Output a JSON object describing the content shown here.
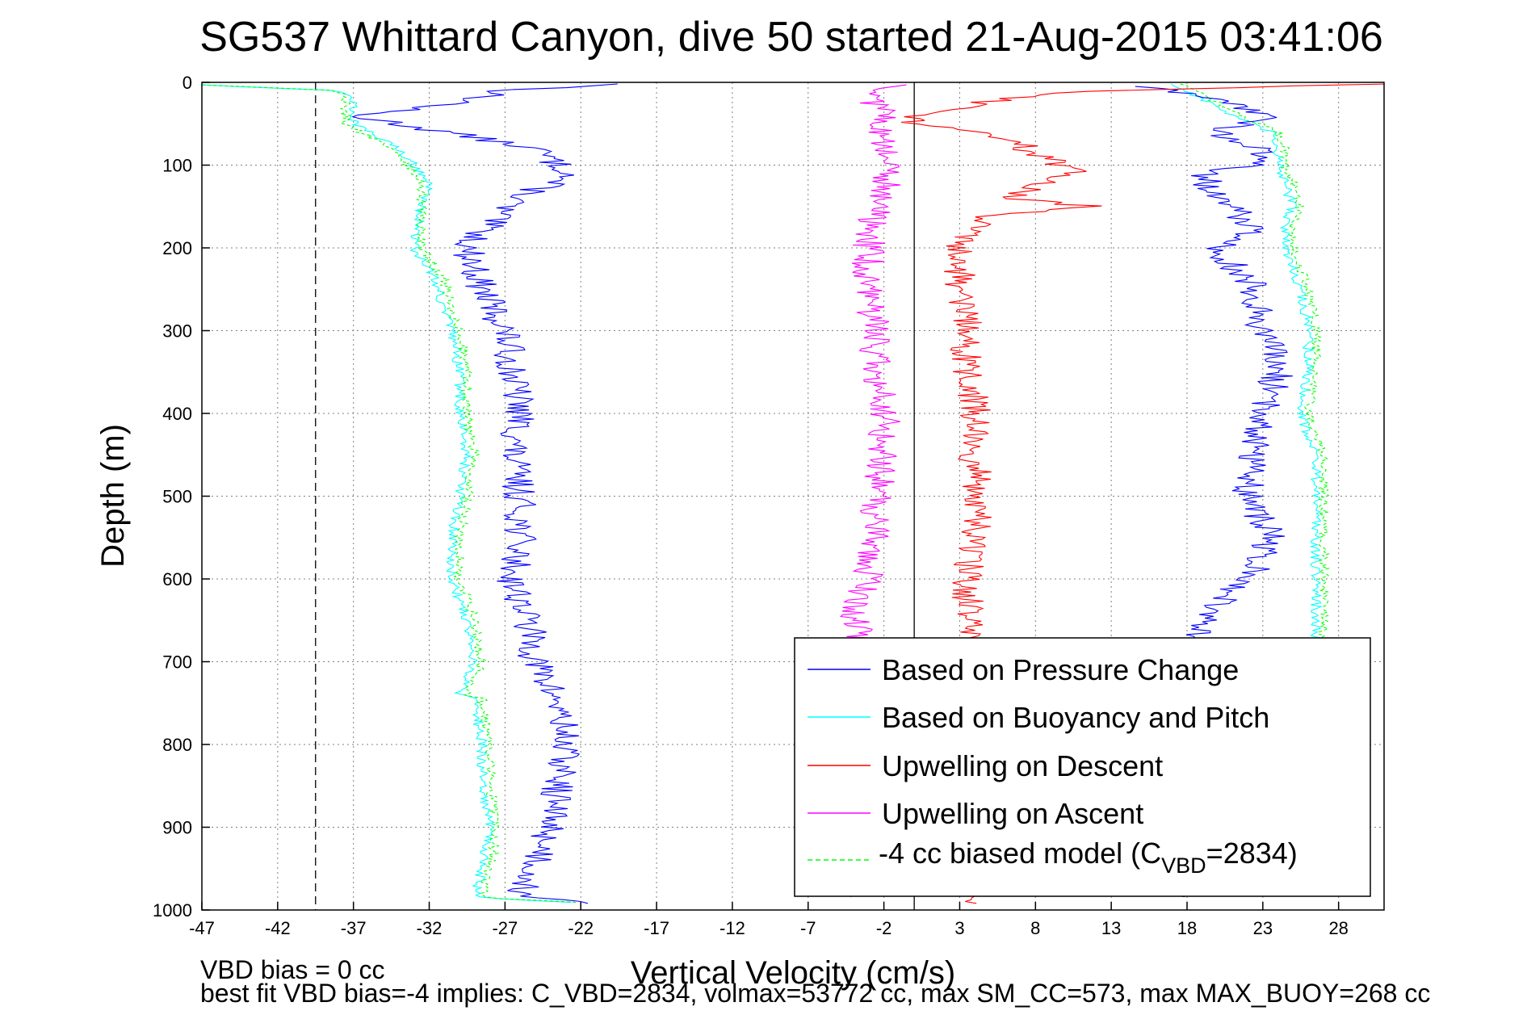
{
  "chart_data": {
    "type": "line",
    "title": "SG537 Whittard Canyon, dive 50 started 21-Aug-2015 03:41:06",
    "xlabel": "Vertical Velocity (cm/s)",
    "ylabel": "Depth (m)",
    "xlim": [
      -47,
      31
    ],
    "ylim": [
      0,
      1000
    ],
    "y_reversed": true,
    "grid": true,
    "legend_position": "bottom-right",
    "x_ticks": [
      "-47",
      "-42",
      "-37",
      "-32",
      "-27",
      "-22",
      "-17",
      "-12",
      "-7",
      "-2",
      "3",
      "8",
      "13",
      "18",
      "23",
      "28"
    ],
    "y_ticks": [
      "0",
      "100",
      "200",
      "300",
      "400",
      "500",
      "600",
      "700",
      "800",
      "900",
      "1000"
    ],
    "reference_lines": [
      {
        "axis": "x",
        "value": -39.5,
        "style": "dashed",
        "color": "#000000"
      },
      {
        "axis": "x",
        "value": 0,
        "style": "solid",
        "color": "#000000"
      }
    ],
    "series": [
      {
        "name": "Based on Pressure Change",
        "color": "#0000ff",
        "style": "solid",
        "branch": "descent",
        "depth": [
          2,
          10,
          25,
          40,
          60,
          80,
          100,
          110,
          130,
          150,
          170,
          200,
          250,
          300,
          350,
          400,
          450,
          500,
          550,
          600,
          650,
          700,
          750,
          800,
          850,
          900,
          950,
          980,
          993
        ],
        "values": [
          -19,
          -27,
          -30,
          -37,
          -31,
          -25,
          -23.5,
          -22.5,
          -25,
          -27,
          -28,
          -29.5,
          -28.5,
          -27,
          -26.5,
          -26,
          -26.5,
          -26,
          -26,
          -26.5,
          -25.5,
          -25,
          -23.5,
          -23,
          -23.5,
          -24,
          -25,
          -26,
          -22
        ]
      },
      {
        "name": "Based on Pressure Change",
        "color": "#0000ff",
        "style": "solid",
        "branch": "ascent",
        "depth": [
          5,
          20,
          40,
          60,
          80,
          100,
          110,
          130,
          150,
          180,
          200,
          250,
          300,
          350,
          400,
          450,
          500,
          550,
          600,
          650,
          670,
          700,
          750,
          800,
          850,
          900,
          950,
          985
        ],
        "values": [
          15,
          20,
          23.5,
          20,
          22.5,
          23,
          19,
          19.5,
          21,
          22.5,
          20,
          22.5,
          23,
          24,
          23,
          22.5,
          22,
          23.5,
          22,
          19,
          18.5,
          19,
          19,
          19,
          19,
          19,
          19,
          17.5
        ]
      },
      {
        "name": "Based on Buoyancy and Pitch",
        "color": "#00ffff",
        "style": "solid",
        "branch": "descent",
        "depth": [
          3,
          10,
          20,
          30,
          50,
          60,
          80,
          100,
          120,
          150,
          200,
          240,
          280,
          300,
          350,
          400,
          450,
          500,
          550,
          600,
          650,
          700,
          740,
          745,
          750,
          800,
          850,
          900,
          950,
          985,
          993
        ],
        "values": [
          -47,
          -38,
          -37,
          -37,
          -37,
          -36,
          -34,
          -33,
          -32,
          -32.5,
          -33,
          -31.5,
          -31,
          -30.5,
          -30,
          -30,
          -29.5,
          -30,
          -30.5,
          -30.5,
          -29.5,
          -29,
          -30,
          -29,
          -29,
          -28.5,
          -28.5,
          -28,
          -28.5,
          -29,
          -20
        ]
      },
      {
        "name": "Based on Buoyancy and Pitch",
        "color": "#00ffff",
        "style": "solid",
        "branch": "ascent",
        "depth": [
          2,
          20,
          40,
          60,
          80,
          100,
          150,
          170,
          200,
          250,
          300,
          350,
          400,
          450,
          500,
          550,
          600,
          650,
          700,
          750,
          800,
          850,
          900,
          950,
          985
        ],
        "values": [
          17,
          19,
          21,
          23.5,
          24,
          24,
          25,
          24.5,
          24.5,
          25.5,
          26,
          26,
          25.5,
          26.5,
          26.5,
          26.5,
          26.5,
          26.5,
          26.5,
          26.5,
          26.5,
          26.5,
          26.5,
          26.5,
          21
        ]
      },
      {
        "name": "-4 cc biased model (C_VBD=2834)",
        "color": "#00ff00",
        "style": "dashed",
        "branch": "descent",
        "depth": [
          3,
          10,
          20,
          30,
          50,
          60,
          80,
          100,
          120,
          150,
          200,
          240,
          280,
          300,
          350,
          400,
          450,
          500,
          550,
          600,
          650,
          700,
          740,
          745,
          750,
          800,
          850,
          900,
          950,
          985,
          993
        ],
        "values": [
          -47,
          -38,
          -37.5,
          -37.5,
          -37.5,
          -36.5,
          -34.5,
          -33.5,
          -32.5,
          -32.5,
          -32.5,
          -31,
          -30.5,
          -30,
          -29.5,
          -29.5,
          -29,
          -29.5,
          -30,
          -30,
          -29,
          -28.5,
          -29.5,
          -28.5,
          -28.5,
          -28,
          -28,
          -27.5,
          -28,
          -28.5,
          -20
        ]
      },
      {
        "name": "-4 cc biased model (C_VBD=2834)",
        "color": "#00ff00",
        "style": "dashed",
        "branch": "ascent",
        "depth": [
          2,
          20,
          40,
          60,
          80,
          100,
          150,
          170,
          200,
          250,
          300,
          350,
          400,
          450,
          500,
          550,
          600,
          650,
          700,
          750,
          800,
          850,
          900,
          950,
          985
        ],
        "values": [
          17.5,
          19.5,
          21.5,
          24,
          24.5,
          24.5,
          25.5,
          25,
          25,
          26,
          26.5,
          26.5,
          26,
          27,
          27,
          27,
          27,
          27,
          27,
          27,
          27,
          27,
          27,
          27,
          21.5
        ]
      },
      {
        "name": "Upwelling on Descent",
        "color": "#ff0000",
        "style": "solid",
        "depth": [
          2,
          10,
          20,
          30,
          40,
          50,
          60,
          80,
          100,
          110,
          130,
          140,
          150,
          160,
          180,
          200,
          250,
          300,
          350,
          400,
          450,
          500,
          550,
          600,
          650,
          700,
          750,
          800,
          850,
          900,
          950,
          985,
          993
        ],
        "values": [
          31,
          12,
          6,
          3,
          0,
          0,
          5,
          7.5,
          9.5,
          10.5,
          7.5,
          6,
          12,
          5,
          3.5,
          3,
          3,
          3.5,
          3.5,
          4,
          4,
          4,
          4,
          3.5,
          3.5,
          3.5,
          3.5,
          3.5,
          3.5,
          3.5,
          3.5,
          3.5,
          5
        ]
      },
      {
        "name": "Upwelling on Ascent",
        "color": "#ff00ff",
        "style": "solid",
        "depth": [
          3,
          20,
          40,
          60,
          80,
          100,
          150,
          200,
          250,
          300,
          350,
          400,
          450,
          500,
          550,
          600,
          650,
          700,
          750,
          800,
          850,
          900,
          950,
          985
        ],
        "values": [
          -1,
          -3,
          -1.5,
          -2.5,
          -2,
          -1.5,
          -2.5,
          -3,
          -3,
          -2.5,
          -2.5,
          -2,
          -2,
          -2.5,
          -2.5,
          -3,
          -4,
          -3,
          -3,
          -3,
          -3,
          -3,
          -3,
          -3.5
        ]
      }
    ]
  },
  "legend": {
    "items": [
      {
        "label": "Based on Pressure Change",
        "color": "#0000ff"
      },
      {
        "label": "Based on Buoyancy and Pitch",
        "color": "#00ffff"
      },
      {
        "label": "Upwelling on Descent",
        "color": "#ff0000"
      },
      {
        "label": "Upwelling on Ascent",
        "color": "#ff00ff"
      }
    ],
    "model": {
      "prefix": "-4 cc biased model (C",
      "sub": "VBD",
      "suffix": "=2834)",
      "color": "#00ff00"
    }
  },
  "notes": {
    "bias": "VBD bias = 0 cc",
    "best_fit": "best fit VBD bias=-4 implies: C_VBD=2834, volmax=53772 cc, max SM_CC=573, max MAX_BUOY=268 cc"
  }
}
